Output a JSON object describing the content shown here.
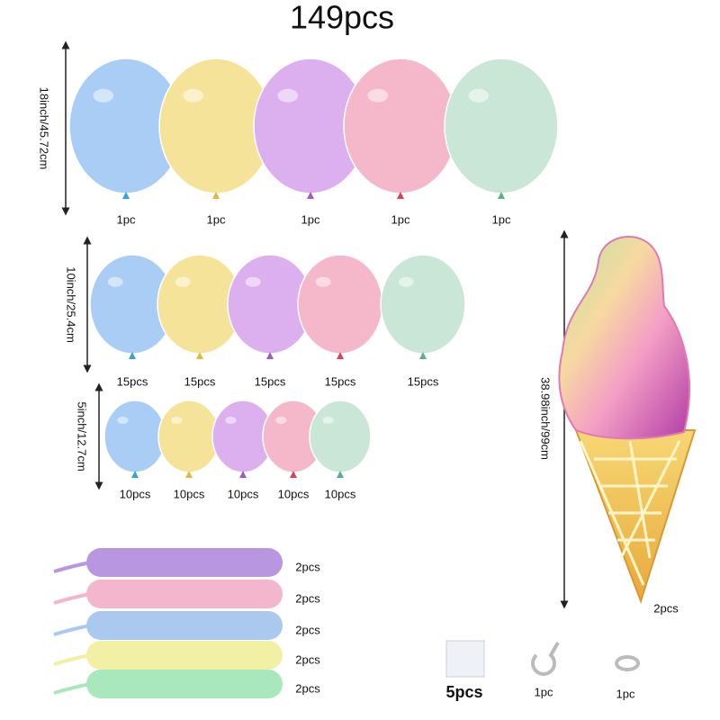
{
  "title": "149pcs",
  "rows": [
    {
      "size": "18inch/45.72cm",
      "counts": [
        "1pc",
        "1pc",
        "1pc",
        "1pc",
        "1pc"
      ]
    },
    {
      "size": "10inch/25.4cm",
      "counts": [
        "15pcs",
        "15pcs",
        "15pcs",
        "15pcs",
        "15pcs"
      ]
    },
    {
      "size": "5inch/12.7cm",
      "counts": [
        "10pcs",
        "10pcs",
        "10pcs",
        "10pcs",
        "10pcs"
      ]
    }
  ],
  "long_balloons": [
    "2pcs",
    "2pcs",
    "2pcs",
    "2pcs",
    "2pcs"
  ],
  "ice_cream": {
    "size": "38.98inch/99cm",
    "count": "2pcs"
  },
  "accessories": [
    "5pcs",
    "1pc",
    "1pc"
  ]
}
